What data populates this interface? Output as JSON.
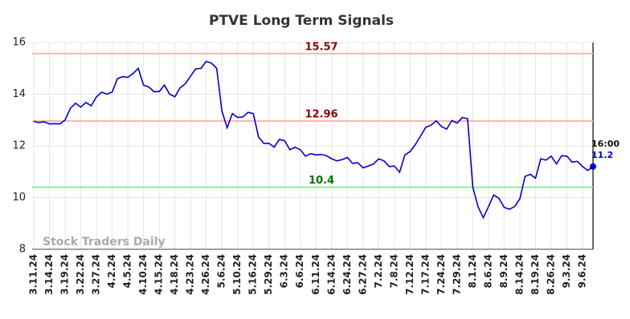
{
  "chart_data": {
    "type": "line",
    "title": "PTVE Long Term Signals",
    "categories": [
      "3.11.24",
      null,
      null,
      "3.14.24",
      null,
      null,
      "3.19.24",
      null,
      null,
      "3.22.24",
      null,
      null,
      "3.27.24",
      null,
      null,
      "4.2.24",
      null,
      null,
      "4.5.24",
      null,
      null,
      "4.10.24",
      null,
      null,
      "4.15.24",
      null,
      null,
      "4.18.24",
      null,
      null,
      "4.23.24",
      null,
      null,
      "4.26.24",
      null,
      null,
      "5.6.24",
      null,
      null,
      "5.10.24",
      null,
      null,
      "5.16.24",
      null,
      null,
      "5.29.24",
      null,
      null,
      "6.3.24",
      null,
      null,
      "6.6.24",
      null,
      null,
      "6.11.24",
      null,
      null,
      "6.14.24",
      null,
      null,
      "6.24.24",
      null,
      null,
      "6.27.24",
      null,
      null,
      "7.2.24",
      null,
      null,
      "7.8.24",
      null,
      null,
      "7.12.24",
      null,
      null,
      "7.17.24",
      null,
      null,
      "7.24.24",
      null,
      null,
      "7.29.24",
      null,
      null,
      "8.1.24",
      null,
      null,
      "8.6.24",
      null,
      null,
      "8.9.24",
      null,
      null,
      "8.14.24",
      null,
      null,
      "8.19.24",
      null,
      null,
      "8.26.24",
      null,
      null,
      "9.3.24",
      null,
      null,
      "9.6.24",
      null,
      null
    ],
    "series": [
      {
        "color": "#0000cc",
        "values": [
          12.95,
          12.9,
          12.93,
          12.85,
          12.86,
          12.85,
          13.0,
          13.45,
          13.65,
          13.5,
          13.68,
          13.55,
          13.9,
          14.08,
          14.0,
          14.08,
          14.6,
          14.68,
          14.65,
          14.8,
          15.0,
          14.35,
          14.28,
          14.1,
          14.1,
          14.35,
          14.0,
          13.9,
          14.25,
          14.4,
          14.7,
          14.98,
          15.0,
          15.27,
          15.2,
          15.0,
          13.35,
          12.7,
          13.25,
          13.1,
          13.12,
          13.3,
          13.25,
          12.35,
          12.1,
          12.1,
          11.95,
          12.25,
          12.2,
          11.85,
          11.95,
          11.85,
          11.6,
          11.7,
          11.65,
          11.67,
          11.62,
          11.5,
          11.42,
          11.47,
          11.55,
          11.32,
          11.35,
          11.15,
          11.22,
          11.3,
          11.5,
          11.42,
          11.2,
          11.22,
          10.98,
          11.65,
          11.78,
          12.05,
          12.38,
          12.72,
          12.8,
          12.97,
          12.75,
          12.65,
          12.98,
          12.88,
          13.1,
          13.05,
          10.4,
          9.65,
          9.22,
          9.65,
          10.1,
          9.97,
          9.62,
          9.55,
          9.65,
          9.95,
          10.82,
          10.9,
          10.75,
          11.5,
          11.45,
          11.6,
          11.3,
          11.62,
          11.6,
          11.37,
          11.4,
          11.2,
          11.05,
          11.2
        ]
      }
    ],
    "ylim": [
      8,
      16
    ],
    "yticks": [
      8,
      10,
      12,
      14,
      16
    ],
    "grid": true,
    "hlines": [
      {
        "value": 15.57,
        "color": "#ffb3b3",
        "label_color": "#8b0000"
      },
      {
        "value": 12.96,
        "color": "#ffb3b3",
        "label_color": "#8b0000"
      },
      {
        "value": 10.4,
        "color": "#90ee90",
        "label_color": "#007000"
      }
    ],
    "time_label": "16:00",
    "watermark": "Stock Traders Daily"
  }
}
